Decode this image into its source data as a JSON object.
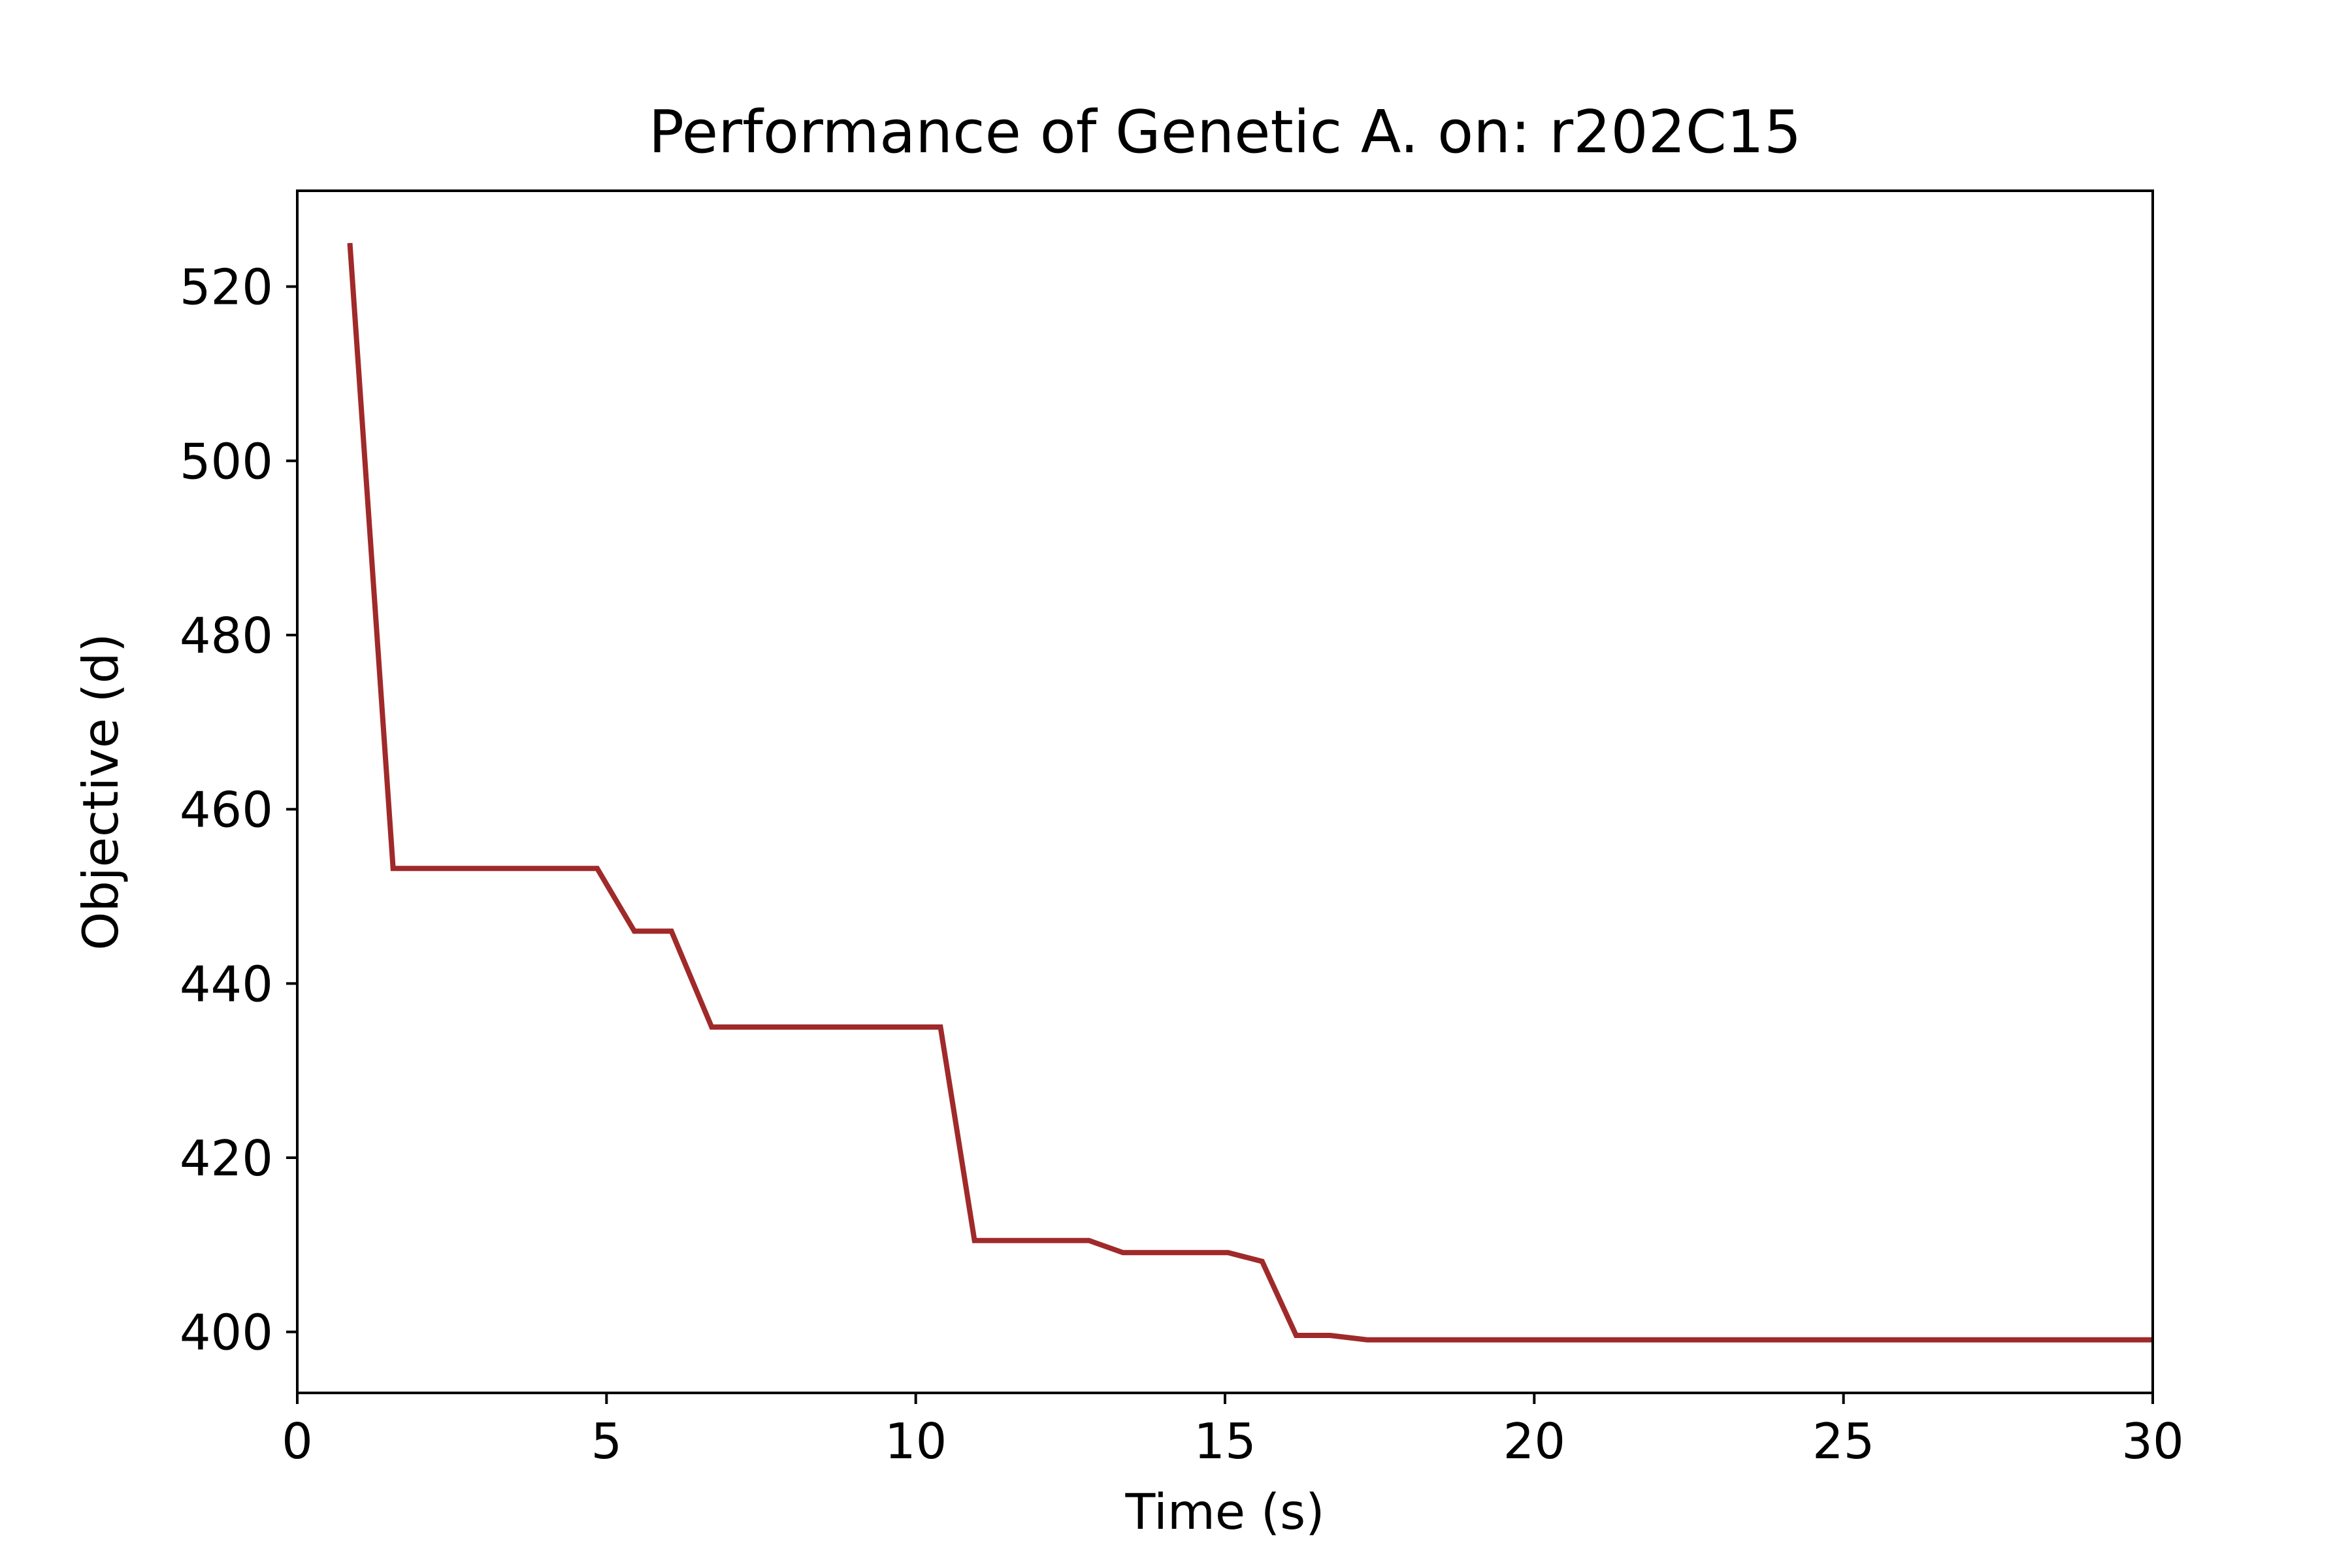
{
  "chart_data": {
    "type": "line",
    "title": "Performance of Genetic A. on: r202C15",
    "xlabel": "Time (s)",
    "ylabel": "Objective (d)",
    "xlim": [
      0,
      30
    ],
    "ylim": [
      393,
      531
    ],
    "xticks": [
      0,
      5,
      10,
      15,
      20,
      25,
      30
    ],
    "yticks": [
      400,
      420,
      440,
      460,
      480,
      500,
      520
    ],
    "grid": false,
    "colors": {
      "line": "#a0292a",
      "axes": "#000000"
    },
    "series": [
      {
        "x": [
          0.85,
          1.55,
          4.85,
          5.45,
          6.05,
          6.7,
          10.4,
          10.95,
          12.8,
          13.35,
          15.05,
          15.6,
          16.15,
          16.7,
          17.3,
          30
        ],
        "y": [
          525,
          453.2,
          453.2,
          446,
          446,
          435,
          435,
          410.5,
          410.5,
          409.1,
          409.1,
          408.1,
          399.6,
          399.6,
          399.1,
          399.1
        ]
      }
    ]
  }
}
